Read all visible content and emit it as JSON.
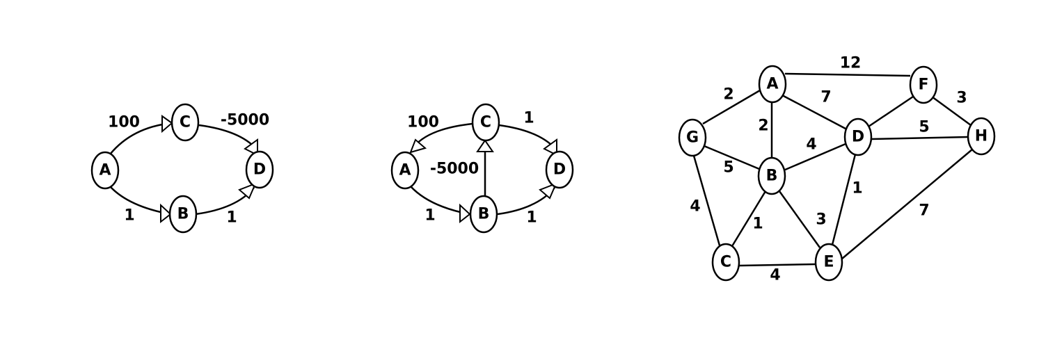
{
  "graphs": [
    {
      "id": "graph1",
      "directed": true,
      "nodes": [
        {
          "id": "A",
          "label": "A"
        },
        {
          "id": "B",
          "label": "B"
        },
        {
          "id": "C",
          "label": "C"
        },
        {
          "id": "D",
          "label": "D"
        }
      ],
      "edges": [
        {
          "from": "A",
          "to": "C",
          "weight": "100"
        },
        {
          "from": "C",
          "to": "D",
          "weight": "-5000"
        },
        {
          "from": "A",
          "to": "B",
          "weight": "1"
        },
        {
          "from": "B",
          "to": "D",
          "weight": "1"
        }
      ]
    },
    {
      "id": "graph2",
      "directed": true,
      "nodes": [
        {
          "id": "A",
          "label": "A"
        },
        {
          "id": "B",
          "label": "B"
        },
        {
          "id": "C",
          "label": "C"
        },
        {
          "id": "D",
          "label": "D"
        }
      ],
      "edges": [
        {
          "from": "C",
          "to": "A",
          "weight": "100"
        },
        {
          "from": "C",
          "to": "D",
          "weight": "1"
        },
        {
          "from": "B",
          "to": "C",
          "weight": "-5000"
        },
        {
          "from": "A",
          "to": "B",
          "weight": "1"
        },
        {
          "from": "B",
          "to": "D",
          "weight": "1"
        }
      ]
    },
    {
      "id": "graph3",
      "directed": false,
      "nodes": [
        {
          "id": "A",
          "label": "A"
        },
        {
          "id": "B",
          "label": "B"
        },
        {
          "id": "C",
          "label": "C"
        },
        {
          "id": "D",
          "label": "D"
        },
        {
          "id": "E",
          "label": "E"
        },
        {
          "id": "F",
          "label": "F"
        },
        {
          "id": "G",
          "label": "G"
        },
        {
          "id": "H",
          "label": "H"
        }
      ],
      "edges": [
        {
          "from": "A",
          "to": "F",
          "weight": "12"
        },
        {
          "from": "G",
          "to": "A",
          "weight": "2"
        },
        {
          "from": "A",
          "to": "D",
          "weight": "7"
        },
        {
          "from": "A",
          "to": "B",
          "weight": "2"
        },
        {
          "from": "F",
          "to": "H",
          "weight": "3"
        },
        {
          "from": "D",
          "to": "F",
          "weight": ""
        },
        {
          "from": "D",
          "to": "H",
          "weight": "5"
        },
        {
          "from": "B",
          "to": "D",
          "weight": "4"
        },
        {
          "from": "G",
          "to": "B",
          "weight": "5"
        },
        {
          "from": "G",
          "to": "C",
          "weight": "4"
        },
        {
          "from": "B",
          "to": "C",
          "weight": "1"
        },
        {
          "from": "B",
          "to": "E",
          "weight": "3"
        },
        {
          "from": "D",
          "to": "E",
          "weight": "1"
        },
        {
          "from": "C",
          "to": "E",
          "weight": "4"
        },
        {
          "from": "E",
          "to": "H",
          "weight": "7"
        }
      ]
    }
  ]
}
